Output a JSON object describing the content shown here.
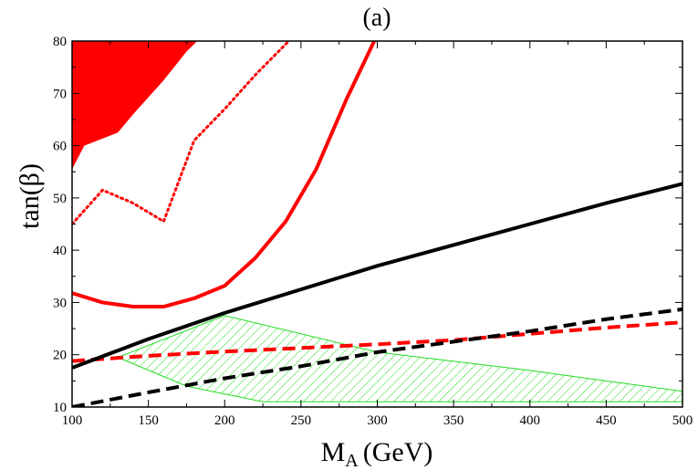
{
  "chart_data": {
    "type": "line",
    "title": "(a)",
    "xlabel_main": "M",
    "xlabel_sub": "A",
    "xlabel_unit": "(GeV)",
    "ylabel_prefix": "tan(",
    "ylabel_symbol": "β",
    "ylabel_suffix": ")",
    "xlim": [
      100,
      500
    ],
    "ylim": [
      10,
      80
    ],
    "xticks": [
      100,
      150,
      200,
      250,
      300,
      350,
      400,
      450,
      500
    ],
    "yticks": [
      10,
      20,
      30,
      40,
      50,
      60,
      70,
      80
    ],
    "grid": false,
    "colors": {
      "red": "#ff0000",
      "black": "#000000",
      "green": "#22dd22"
    },
    "filled_region": {
      "color": "#ff0000",
      "boundary": [
        [
          100,
          80
        ],
        [
          100,
          55.5
        ],
        [
          108,
          60
        ],
        [
          130,
          62.5
        ],
        [
          140,
          66
        ],
        [
          160,
          72.5
        ],
        [
          175,
          78
        ],
        [
          182,
          80
        ]
      ]
    },
    "hatched_region": {
      "color": "#22dd22",
      "boundary": [
        [
          130,
          19.5
        ],
        [
          200,
          27.5
        ],
        [
          300,
          20.5
        ],
        [
          400,
          17
        ],
        [
          500,
          13
        ],
        [
          500,
          11
        ],
        [
          225,
          11
        ],
        [
          175,
          14
        ],
        [
          130,
          19.5
        ]
      ]
    },
    "series": [
      {
        "style": "solid",
        "color": "#ff0000",
        "x": [
          100,
          120,
          140,
          160,
          180,
          200,
          220,
          240,
          260,
          280,
          298
        ],
        "y": [
          31.8,
          30,
          29.2,
          29.2,
          30.8,
          33.2,
          38.5,
          45.5,
          55.5,
          69,
          80
        ]
      },
      {
        "style": "dotted",
        "color": "#ff0000",
        "x": [
          100,
          120,
          140,
          160,
          180,
          200,
          220,
          242
        ],
        "y": [
          45,
          51.5,
          49,
          45.5,
          61,
          67,
          73.5,
          80
        ]
      },
      {
        "style": "dashed",
        "color": "#ff0000",
        "x": [
          100,
          150,
          200,
          250,
          300,
          350,
          400,
          450,
          500
        ],
        "y": [
          18.8,
          19.8,
          20.6,
          21.3,
          22,
          22.8,
          24,
          25.2,
          26.2
        ]
      },
      {
        "style": "solid",
        "color": "#000000",
        "x": [
          100,
          150,
          200,
          250,
          300,
          350,
          400,
          450,
          500
        ],
        "y": [
          17.5,
          23,
          28,
          32.5,
          37,
          41,
          45,
          49,
          52.7
        ]
      },
      {
        "style": "dashed",
        "color": "#000000",
        "x": [
          100,
          150,
          200,
          250,
          300,
          350,
          400,
          450,
          500
        ],
        "y": [
          10,
          12.8,
          15.5,
          17.8,
          20.5,
          22.5,
          24.5,
          26.8,
          28.7
        ]
      }
    ]
  }
}
